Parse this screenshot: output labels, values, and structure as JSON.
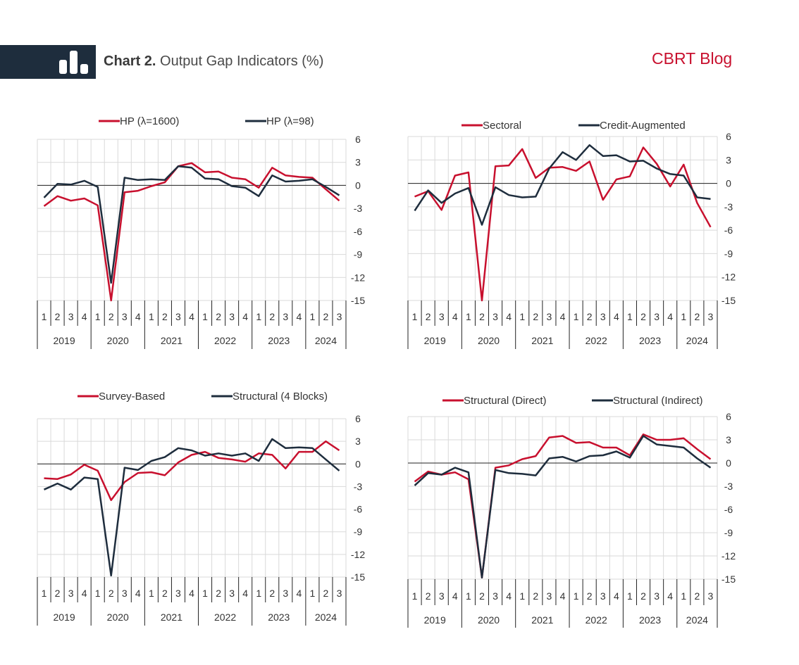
{
  "header": {
    "chart_label": "Chart 2.",
    "chart_title": "Output Gap Indicators (%)",
    "brand": "CBRT Blog"
  },
  "colors": {
    "red": "#c8102e",
    "navy": "#1e2d3d",
    "header_bg": "#1e2d3d",
    "brand": "#c8102e",
    "grid": "#d9d9d9"
  },
  "chart_data": [
    {
      "type": "line",
      "quarters": [
        "1",
        "2",
        "3",
        "4",
        "1",
        "2",
        "3",
        "4",
        "1",
        "2",
        "3",
        "4",
        "1",
        "2",
        "3",
        "4",
        "1",
        "2",
        "3",
        "4",
        "1",
        "2",
        "3"
      ],
      "years": [
        "2019",
        "2020",
        "2021",
        "2022",
        "2023",
        "2024"
      ],
      "ylim": [
        -15,
        6
      ],
      "yticks": [
        "6",
        "3",
        "0",
        "-3",
        "-6",
        "-9",
        "-12",
        "-15"
      ],
      "grid": true,
      "legend_position": "top",
      "series": [
        {
          "name": "HP (λ=1600)",
          "color": "#c8102e",
          "values": [
            -2.7,
            -1.4,
            -2.0,
            -1.7,
            -2.6,
            -15.0,
            -0.9,
            -0.7,
            -0.1,
            0.4,
            2.5,
            2.9,
            1.7,
            1.8,
            1.0,
            0.8,
            -0.3,
            2.3,
            1.3,
            1.1,
            1.0,
            -0.5,
            -2.0
          ]
        },
        {
          "name": "HP (λ=98)",
          "color": "#1e2d3d",
          "values": [
            -1.6,
            0.2,
            0.1,
            0.6,
            -0.2,
            -12.7,
            1.0,
            0.7,
            0.8,
            0.7,
            2.5,
            2.3,
            0.9,
            0.8,
            -0.1,
            -0.3,
            -1.4,
            1.3,
            0.5,
            0.6,
            0.8,
            -0.2,
            -1.3
          ]
        }
      ]
    },
    {
      "type": "line",
      "quarters": [
        "1",
        "2",
        "3",
        "4",
        "1",
        "2",
        "3",
        "4",
        "1",
        "2",
        "3",
        "4",
        "1",
        "2",
        "3",
        "4",
        "1",
        "2",
        "3",
        "4",
        "1",
        "2",
        "3"
      ],
      "years": [
        "2019",
        "2020",
        "2021",
        "2022",
        "2023",
        "2024"
      ],
      "ylim": [
        -15,
        6
      ],
      "yticks": [
        "6",
        "3",
        "0",
        "-3",
        "-6",
        "-9",
        "-12",
        "-15"
      ],
      "grid": true,
      "legend_position": "top",
      "series": [
        {
          "name": "Sectoral",
          "color": "#c8102e",
          "values": [
            -1.7,
            -1.0,
            -3.4,
            1.0,
            1.4,
            -15.0,
            2.2,
            2.3,
            4.4,
            0.7,
            2.0,
            2.1,
            1.6,
            2.8,
            -2.1,
            0.5,
            0.9,
            4.6,
            2.5,
            -0.4,
            2.4,
            -2.5,
            -5.6
          ]
        },
        {
          "name": "Credit-Augmented",
          "color": "#1e2d3d",
          "values": [
            -3.5,
            -0.9,
            -2.5,
            -1.3,
            -0.6,
            -5.3,
            -0.5,
            -1.5,
            -1.8,
            -1.7,
            1.9,
            4.0,
            3.0,
            4.9,
            3.5,
            3.6,
            2.8,
            2.9,
            1.9,
            1.2,
            1.0,
            -1.8,
            -2.0
          ]
        }
      ]
    },
    {
      "type": "line",
      "quarters": [
        "1",
        "2",
        "3",
        "4",
        "1",
        "2",
        "3",
        "4",
        "1",
        "2",
        "3",
        "4",
        "1",
        "2",
        "3",
        "4",
        "1",
        "2",
        "3",
        "4",
        "1",
        "2",
        "3"
      ],
      "years": [
        "2019",
        "2020",
        "2021",
        "2022",
        "2023",
        "2024"
      ],
      "ylim": [
        -15,
        6
      ],
      "yticks": [
        "6",
        "3",
        "0",
        "-3",
        "-6",
        "-9",
        "-12",
        "-15"
      ],
      "grid": true,
      "legend_position": "top",
      "series": [
        {
          "name": "Survey-Based",
          "color": "#c8102e",
          "values": [
            -1.9,
            -2.0,
            -1.4,
            -0.1,
            -0.9,
            -4.8,
            -2.4,
            -1.2,
            -1.1,
            -1.5,
            0.2,
            1.2,
            1.6,
            0.8,
            0.6,
            0.3,
            1.4,
            1.2,
            -0.6,
            1.6,
            1.6,
            3.0,
            1.8
          ]
        },
        {
          "name": "Structural (4 Blocks)",
          "color": "#1e2d3d",
          "values": [
            -3.4,
            -2.6,
            -3.4,
            -1.8,
            -2.0,
            -14.8,
            -0.5,
            -0.8,
            0.4,
            0.9,
            2.1,
            1.8,
            1.1,
            1.4,
            1.1,
            1.4,
            0.4,
            3.3,
            2.1,
            2.2,
            2.1,
            0.6,
            -0.9
          ]
        }
      ]
    },
    {
      "type": "line",
      "quarters": [
        "1",
        "2",
        "3",
        "4",
        "1",
        "2",
        "3",
        "4",
        "1",
        "2",
        "3",
        "4",
        "1",
        "2",
        "3",
        "4",
        "1",
        "2",
        "3",
        "4",
        "1",
        "2",
        "3"
      ],
      "years": [
        "2019",
        "2020",
        "2021",
        "2022",
        "2023",
        "2024"
      ],
      "ylim": [
        -15,
        6
      ],
      "yticks": [
        "6",
        "3",
        "0",
        "-3",
        "-6",
        "-9",
        "-12",
        "-15"
      ],
      "grid": true,
      "legend_position": "top",
      "series": [
        {
          "name": "Structural (Direct)",
          "color": "#c8102e",
          "values": [
            -2.4,
            -1.1,
            -1.5,
            -1.2,
            -2.1,
            -14.8,
            -0.6,
            -0.3,
            0.5,
            0.9,
            3.3,
            3.5,
            2.6,
            2.7,
            2.0,
            2.0,
            1.0,
            3.7,
            3.0,
            3.0,
            3.2,
            1.8,
            0.5
          ]
        },
        {
          "name": "Structural (Indirect)",
          "color": "#1e2d3d",
          "values": [
            -2.9,
            -1.3,
            -1.5,
            -0.6,
            -1.2,
            -14.8,
            -0.9,
            -1.3,
            -1.4,
            -1.6,
            0.6,
            0.8,
            0.2,
            0.9,
            1.0,
            1.5,
            0.7,
            3.5,
            2.4,
            2.2,
            2.0,
            0.6,
            -0.6
          ]
        }
      ]
    }
  ]
}
